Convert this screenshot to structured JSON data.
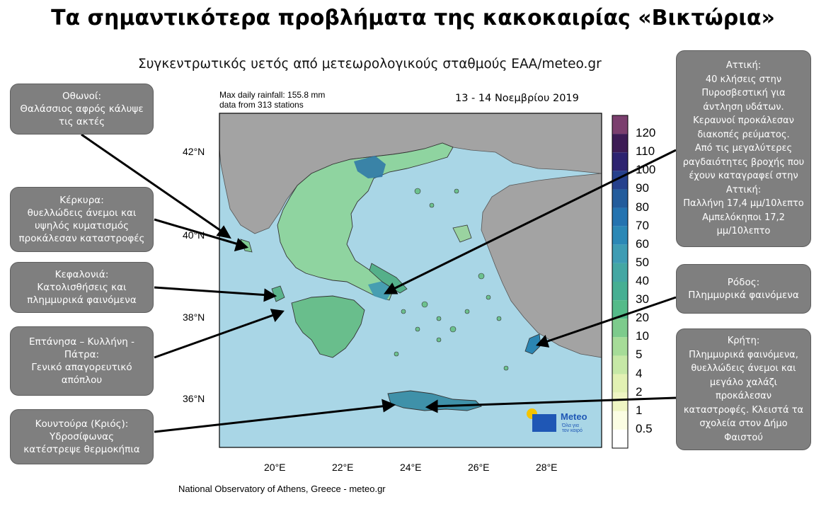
{
  "title": "Τα σημαντικότερα προβλήματα της κακοκαιρίας «Βικτώρια»",
  "subtitle": "Συγκεντρωτικός υετός από μετεωρολογικούς σταθμούς ΕΑΑ/meteo.gr",
  "map_info": {
    "line1": "Max daily rainfall: 155.8 mm",
    "line2": "data from 313 stations"
  },
  "date_range": "13 - 14 Νοεμβρίου 2019",
  "footer": "National Observatory of Athens, Greece - meteo.gr",
  "latitude_labels": [
    "42°N",
    "40°N",
    "38°N",
    "36°N"
  ],
  "longitude_labels": [
    "20°E",
    "22°E",
    "24°E",
    "26°E",
    "28°E"
  ],
  "colorbar": {
    "labels": [
      "120",
      "110",
      "100",
      "90",
      "80",
      "70",
      "60",
      "50",
      "40",
      "30",
      "20",
      "10",
      "5",
      "4",
      "2",
      "1",
      "0.5"
    ],
    "colors": [
      "#7b3f6e",
      "#3d1c55",
      "#2d2370",
      "#26418d",
      "#235c9c",
      "#2473b0",
      "#2b88b6",
      "#3e9cb4",
      "#44a7a3",
      "#46af93",
      "#55bb89",
      "#7dcb8c",
      "#a6dc98",
      "#c6e8a6",
      "#e2f1b3",
      "#eff6c3",
      "#fbfde3",
      "#ffffff"
    ]
  },
  "logo": {
    "brand": "Meteo",
    "tagline": "Όλα για\nτον καιρό"
  },
  "colors": {
    "sea": "#a9d6e6",
    "land": "#a3a3a3",
    "callout_bg": "#7f7f7f",
    "callout_border": "#5e5e5e"
  },
  "callouts": {
    "othonoi": "Οθωνοί:\nΘαλάσσιος αφρός κάλυψε\nτις ακτές",
    "kerkyra": "Κέρκυρα:\nθυελλώδεις άνεμοι και\nυψηλός κυματισμός\nπροκάλεσαν καταστροφές",
    "kefalonia": "Κεφαλονιά:\nΚατολισθήσεις και\nπλημμυρικά φαινόμενα",
    "eptanisa": "Επτάνησα – Κυλλήνη -\nΠάτρα:\nΓενικό απαγορευτικό\nαπόπλου",
    "kountoura": "Κουντούρα (Κριός):\nΥδροσίφωνας\nκατέστρεψε θερμοκήπια",
    "attiki": "Αττική:\n40 κλήσεις στην\nΠυροσβεστική για\nάντληση υδάτων.\nΚεραυνοί προκάλεσαν\nδιακοπές ρεύματος.\nΑπό τις μεγαλύτερες\nραγδαιότητες βροχής που\nέχουν καταγραφεί στην\nΑττική:\nΠαλλήνη 17,4 μμ/10λεπτο\nΑμπελόκηποι 17,2\nμμ/10λεπτο",
    "rodos": "Ρόδος:\nΠλημμυρικά φαινόμενα",
    "kriti": "Κρήτη:\nΠλημμυρικά φαινόμενα,\nθυελλώδεις άνεμοι και\nμεγάλο χαλάζι\nπροκάλεσαν\nκαταστροφές. Κλειστά τα\nσχολεία στον Δήμο\nΦαιστού"
  }
}
